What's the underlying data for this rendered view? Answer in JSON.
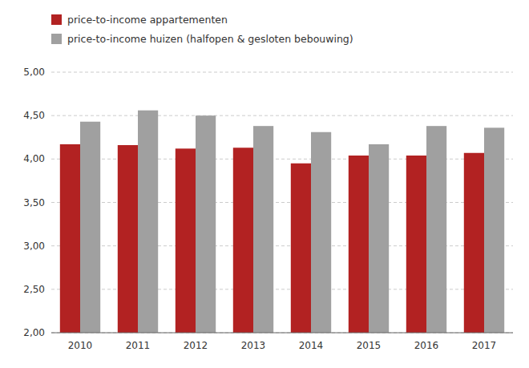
{
  "chart_data": {
    "type": "bar",
    "categories": [
      "2010",
      "2011",
      "2012",
      "2013",
      "2014",
      "2015",
      "2016",
      "2017"
    ],
    "series": [
      {
        "name": "price-to-income appartementen",
        "color": "#b22222",
        "values": [
          4.17,
          4.16,
          4.12,
          4.13,
          3.95,
          4.04,
          4.04,
          4.07
        ]
      },
      {
        "name": "price-to-income huizen (halfopen & gesloten bebouwing)",
        "color": "#a0a0a0",
        "values": [
          4.43,
          4.56,
          4.5,
          4.38,
          4.31,
          4.17,
          4.38,
          4.36
        ]
      }
    ],
    "ylim": [
      2.0,
      5.0
    ],
    "yticks": [
      {
        "value": 2.0,
        "label": "2,00"
      },
      {
        "value": 2.5,
        "label": "2,50"
      },
      {
        "value": 3.0,
        "label": "3,00"
      },
      {
        "value": 3.5,
        "label": "3,50"
      },
      {
        "value": 4.0,
        "label": "4,00"
      },
      {
        "value": 4.5,
        "label": "4,50"
      },
      {
        "value": 5.0,
        "label": "5,00"
      }
    ],
    "grid": true,
    "legend": "top-left"
  }
}
